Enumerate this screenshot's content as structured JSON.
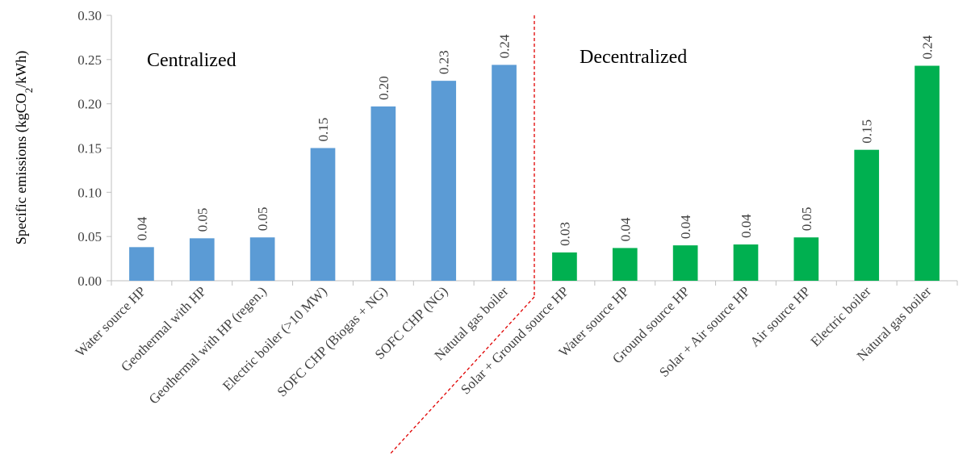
{
  "chart_data": {
    "type": "bar",
    "ylabel": "Specific emissions (kgCO2/kWh)",
    "ylabel_parts": {
      "before": "Specific emissions (kgCO",
      "sub": "2",
      "after": "/kWh)"
    },
    "ylim": [
      0,
      0.3
    ],
    "yticks": [
      "0.00",
      "0.05",
      "0.10",
      "0.15",
      "0.20",
      "0.25",
      "0.30"
    ],
    "grid": false,
    "groups": [
      {
        "label": "Centralized",
        "color": "#5B9BD5",
        "categories": [
          "Water source HP",
          "Geothermal with HP",
          "Geothermal with HP (regen.)",
          "Electric boiler (>10 MW)",
          "SOFC CHP  (Biogas + NG)",
          "SOFC CHP  (NG)",
          "Natutal gas boiler"
        ],
        "values": [
          0.038,
          0.048,
          0.049,
          0.15,
          0.197,
          0.226,
          0.244
        ],
        "labels": [
          "0.04",
          "0.05",
          "0.05",
          "0.15",
          "0.20",
          "0.23",
          "0.24"
        ]
      },
      {
        "label": "Decentralized",
        "color": "#00B050",
        "categories": [
          "Solar + Ground source HP",
          "Water source HP",
          "Ground source HP",
          "Solar + Air source HP",
          "Air source HP",
          "Electric boiler",
          "Natural gas boiler"
        ],
        "values": [
          0.032,
          0.037,
          0.04,
          0.041,
          0.049,
          0.148,
          0.243
        ],
        "labels": [
          "0.03",
          "0.04",
          "0.04",
          "0.04",
          "0.05",
          "0.15",
          "0.24"
        ]
      }
    ],
    "separator_color": "#E00000"
  }
}
